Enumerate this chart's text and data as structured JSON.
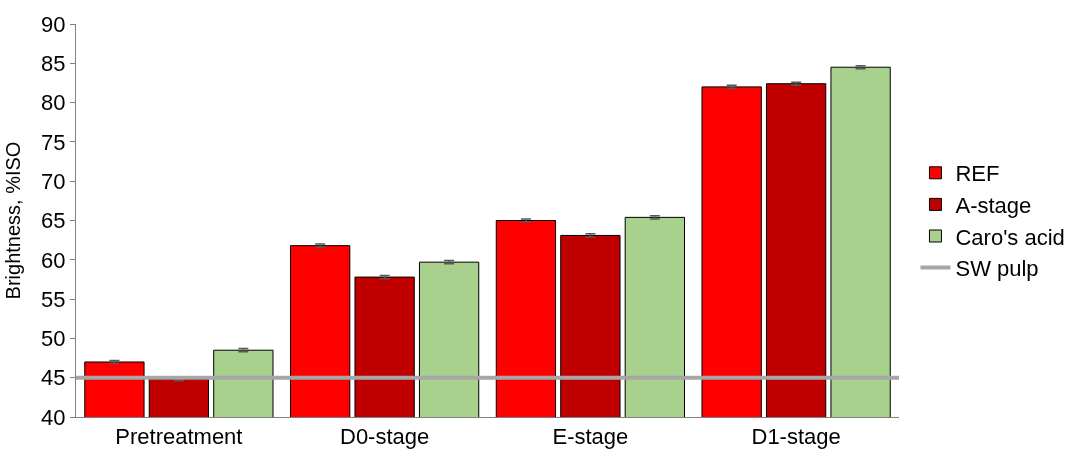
{
  "chart_data": {
    "type": "bar",
    "ylabel": "Brightness, %ISO",
    "categories": [
      "Pretreatment",
      "D0-stage",
      "E-stage",
      "D1-stage"
    ],
    "series": [
      {
        "name": "REF",
        "color": "#ff0000",
        "values": [
          47.0,
          61.8,
          65.0,
          82.0
        ],
        "errors": [
          0.2,
          0.2,
          0.2,
          0.2
        ]
      },
      {
        "name": "A-stage",
        "color": "#c00000",
        "values": [
          44.8,
          57.8,
          63.1,
          82.4
        ],
        "errors": [
          0.2,
          0.2,
          0.2,
          0.2
        ]
      },
      {
        "name": "Caro's acid",
        "color": "#a9d18e",
        "values": [
          48.5,
          59.7,
          65.4,
          84.5
        ],
        "errors": [
          0.2,
          0.2,
          0.2,
          0.2
        ]
      }
    ],
    "ref_lines": [
      {
        "axis": "y",
        "value": 45,
        "label": "SW pulp",
        "color": "#a6a6a6"
      }
    ],
    "ylim": [
      40,
      90
    ],
    "yticks": [
      40,
      45,
      50,
      55,
      60,
      65,
      70,
      75,
      80,
      85,
      90
    ],
    "grid": false,
    "legend": "right"
  }
}
